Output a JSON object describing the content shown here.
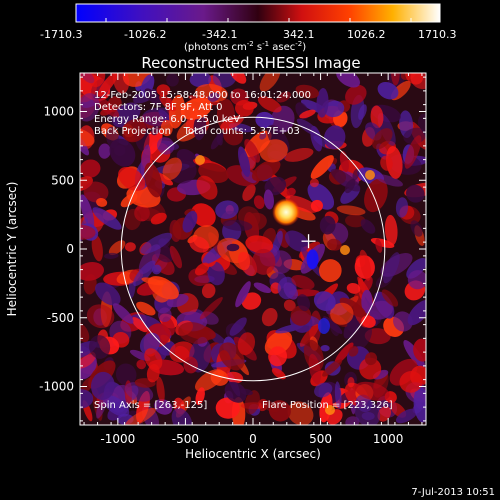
{
  "colorbar": {
    "tick_labels": [
      "-1710.3",
      "-1026.2",
      "-342.1",
      "342.1",
      "1026.2",
      "1710.3"
    ],
    "units_label_main": "(photons cm",
    "units_sup1": "-2",
    "units_mid": " s",
    "units_sup2": "-1",
    "units_asec": " asec",
    "units_sup3": "-2",
    "units_close": ")",
    "colors": [
      "#0000ff",
      "#5a1aa0",
      "#7a1020",
      "#ff2020",
      "#ff9000",
      "#ffff80",
      "#ffffff"
    ]
  },
  "title": "Reconstructed RHESSI Image",
  "info_lines": [
    "12-Feb-2005 15:58:48.000 to 16:01:24.000",
    "Detectors: 7F 8F 9F, Att 0",
    "Energy Range: 6.0 - 25.0 keV",
    "Back Projection    Total counts: 5.37E+03"
  ],
  "bottom_left": "Spin Axis = [263,-125]",
  "bottom_right": "Flare Position = [223,326]",
  "xlabel": "Heliocentric X (arcsec)",
  "ylabel": "Heliocentric Y (arcsec)",
  "x_ticks": [
    "-1000",
    "-500",
    "0",
    "500",
    "1000"
  ],
  "x_tick_values": [
    -1000,
    -500,
    0,
    500,
    1000
  ],
  "y_ticks": [
    "1000",
    "500",
    "0",
    "-500",
    "-1000"
  ],
  "y_tick_values": [
    1000,
    500,
    0,
    -500,
    -1000
  ],
  "x_range": [
    -1280,
    1280
  ],
  "y_range": [
    -1280,
    1280
  ],
  "solar_disk_radius": 975,
  "spin_axis": [
    263,
    -125
  ],
  "flare_position": [
    223,
    326
  ],
  "timestamp": "7-Jul-2013 10:51"
}
